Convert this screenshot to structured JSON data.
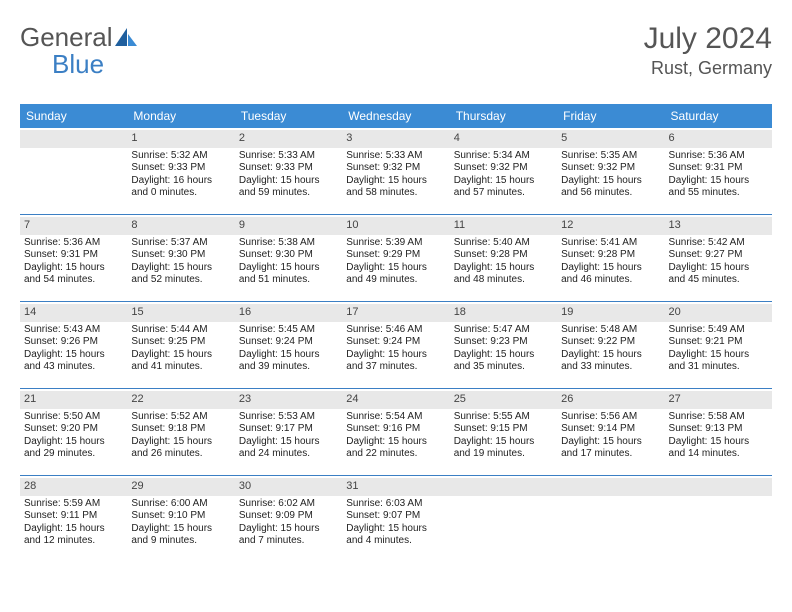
{
  "brand": {
    "text1": "General",
    "text2": "Blue",
    "accent": "#3b8bd4"
  },
  "title": "July 2024",
  "location": "Rust, Germany",
  "dayHeaders": [
    "Sunday",
    "Monday",
    "Tuesday",
    "Wednesday",
    "Thursday",
    "Friday",
    "Saturday"
  ],
  "colors": {
    "header_bg": "#3b8bd4",
    "header_fg": "#ffffff",
    "daynum_bg": "#e8e8e8",
    "row_border": "#3b7fc4",
    "text": "#333333"
  },
  "fonts": {
    "title_pt": 30,
    "location_pt": 18,
    "dayhead_pt": 12,
    "cell_pt": 10
  },
  "weeks": [
    [
      null,
      {
        "n": "1",
        "sr": "Sunrise: 5:32 AM",
        "ss": "Sunset: 9:33 PM",
        "d1": "Daylight: 16 hours",
        "d2": "and 0 minutes."
      },
      {
        "n": "2",
        "sr": "Sunrise: 5:33 AM",
        "ss": "Sunset: 9:33 PM",
        "d1": "Daylight: 15 hours",
        "d2": "and 59 minutes."
      },
      {
        "n": "3",
        "sr": "Sunrise: 5:33 AM",
        "ss": "Sunset: 9:32 PM",
        "d1": "Daylight: 15 hours",
        "d2": "and 58 minutes."
      },
      {
        "n": "4",
        "sr": "Sunrise: 5:34 AM",
        "ss": "Sunset: 9:32 PM",
        "d1": "Daylight: 15 hours",
        "d2": "and 57 minutes."
      },
      {
        "n": "5",
        "sr": "Sunrise: 5:35 AM",
        "ss": "Sunset: 9:32 PM",
        "d1": "Daylight: 15 hours",
        "d2": "and 56 minutes."
      },
      {
        "n": "6",
        "sr": "Sunrise: 5:36 AM",
        "ss": "Sunset: 9:31 PM",
        "d1": "Daylight: 15 hours",
        "d2": "and 55 minutes."
      }
    ],
    [
      {
        "n": "7",
        "sr": "Sunrise: 5:36 AM",
        "ss": "Sunset: 9:31 PM",
        "d1": "Daylight: 15 hours",
        "d2": "and 54 minutes."
      },
      {
        "n": "8",
        "sr": "Sunrise: 5:37 AM",
        "ss": "Sunset: 9:30 PM",
        "d1": "Daylight: 15 hours",
        "d2": "and 52 minutes."
      },
      {
        "n": "9",
        "sr": "Sunrise: 5:38 AM",
        "ss": "Sunset: 9:30 PM",
        "d1": "Daylight: 15 hours",
        "d2": "and 51 minutes."
      },
      {
        "n": "10",
        "sr": "Sunrise: 5:39 AM",
        "ss": "Sunset: 9:29 PM",
        "d1": "Daylight: 15 hours",
        "d2": "and 49 minutes."
      },
      {
        "n": "11",
        "sr": "Sunrise: 5:40 AM",
        "ss": "Sunset: 9:28 PM",
        "d1": "Daylight: 15 hours",
        "d2": "and 48 minutes."
      },
      {
        "n": "12",
        "sr": "Sunrise: 5:41 AM",
        "ss": "Sunset: 9:28 PM",
        "d1": "Daylight: 15 hours",
        "d2": "and 46 minutes."
      },
      {
        "n": "13",
        "sr": "Sunrise: 5:42 AM",
        "ss": "Sunset: 9:27 PM",
        "d1": "Daylight: 15 hours",
        "d2": "and 45 minutes."
      }
    ],
    [
      {
        "n": "14",
        "sr": "Sunrise: 5:43 AM",
        "ss": "Sunset: 9:26 PM",
        "d1": "Daylight: 15 hours",
        "d2": "and 43 minutes."
      },
      {
        "n": "15",
        "sr": "Sunrise: 5:44 AM",
        "ss": "Sunset: 9:25 PM",
        "d1": "Daylight: 15 hours",
        "d2": "and 41 minutes."
      },
      {
        "n": "16",
        "sr": "Sunrise: 5:45 AM",
        "ss": "Sunset: 9:24 PM",
        "d1": "Daylight: 15 hours",
        "d2": "and 39 minutes."
      },
      {
        "n": "17",
        "sr": "Sunrise: 5:46 AM",
        "ss": "Sunset: 9:24 PM",
        "d1": "Daylight: 15 hours",
        "d2": "and 37 minutes."
      },
      {
        "n": "18",
        "sr": "Sunrise: 5:47 AM",
        "ss": "Sunset: 9:23 PM",
        "d1": "Daylight: 15 hours",
        "d2": "and 35 minutes."
      },
      {
        "n": "19",
        "sr": "Sunrise: 5:48 AM",
        "ss": "Sunset: 9:22 PM",
        "d1": "Daylight: 15 hours",
        "d2": "and 33 minutes."
      },
      {
        "n": "20",
        "sr": "Sunrise: 5:49 AM",
        "ss": "Sunset: 9:21 PM",
        "d1": "Daylight: 15 hours",
        "d2": "and 31 minutes."
      }
    ],
    [
      {
        "n": "21",
        "sr": "Sunrise: 5:50 AM",
        "ss": "Sunset: 9:20 PM",
        "d1": "Daylight: 15 hours",
        "d2": "and 29 minutes."
      },
      {
        "n": "22",
        "sr": "Sunrise: 5:52 AM",
        "ss": "Sunset: 9:18 PM",
        "d1": "Daylight: 15 hours",
        "d2": "and 26 minutes."
      },
      {
        "n": "23",
        "sr": "Sunrise: 5:53 AM",
        "ss": "Sunset: 9:17 PM",
        "d1": "Daylight: 15 hours",
        "d2": "and 24 minutes."
      },
      {
        "n": "24",
        "sr": "Sunrise: 5:54 AM",
        "ss": "Sunset: 9:16 PM",
        "d1": "Daylight: 15 hours",
        "d2": "and 22 minutes."
      },
      {
        "n": "25",
        "sr": "Sunrise: 5:55 AM",
        "ss": "Sunset: 9:15 PM",
        "d1": "Daylight: 15 hours",
        "d2": "and 19 minutes."
      },
      {
        "n": "26",
        "sr": "Sunrise: 5:56 AM",
        "ss": "Sunset: 9:14 PM",
        "d1": "Daylight: 15 hours",
        "d2": "and 17 minutes."
      },
      {
        "n": "27",
        "sr": "Sunrise: 5:58 AM",
        "ss": "Sunset: 9:13 PM",
        "d1": "Daylight: 15 hours",
        "d2": "and 14 minutes."
      }
    ],
    [
      {
        "n": "28",
        "sr": "Sunrise: 5:59 AM",
        "ss": "Sunset: 9:11 PM",
        "d1": "Daylight: 15 hours",
        "d2": "and 12 minutes."
      },
      {
        "n": "29",
        "sr": "Sunrise: 6:00 AM",
        "ss": "Sunset: 9:10 PM",
        "d1": "Daylight: 15 hours",
        "d2": "and 9 minutes."
      },
      {
        "n": "30",
        "sr": "Sunrise: 6:02 AM",
        "ss": "Sunset: 9:09 PM",
        "d1": "Daylight: 15 hours",
        "d2": "and 7 minutes."
      },
      {
        "n": "31",
        "sr": "Sunrise: 6:03 AM",
        "ss": "Sunset: 9:07 PM",
        "d1": "Daylight: 15 hours",
        "d2": "and 4 minutes."
      },
      null,
      null,
      null
    ]
  ]
}
